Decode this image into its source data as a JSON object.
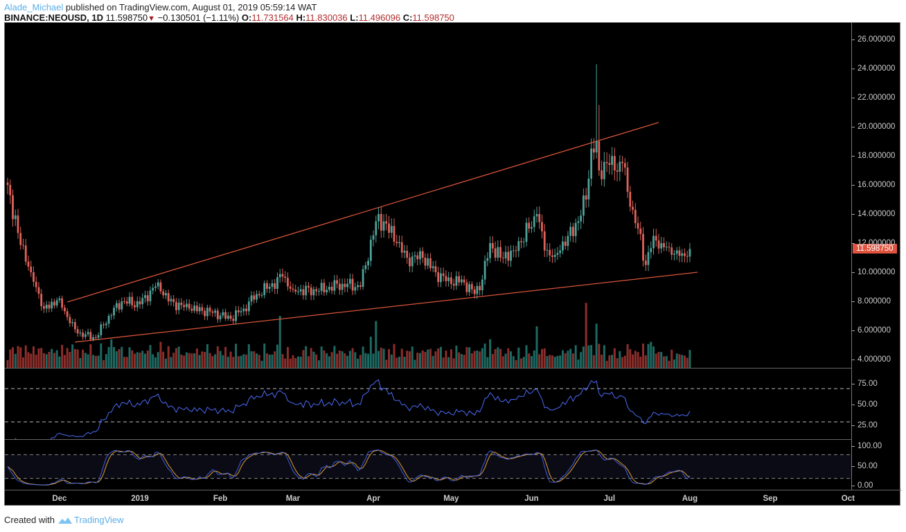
{
  "header": {
    "author": "Alade_Michael",
    "published_text": "published on TradingView.com, August 01, 2019 05:59:14 WAT",
    "symbol": "BINANCE:NEOUSD, 1D",
    "last": "11.598750",
    "change": "−0.130501 (−1.11%)",
    "o_label": "O:",
    "o": "11.731564",
    "h_label": "H:",
    "h": "11.830036",
    "l_label": "L:",
    "l": "11.496096",
    "c_label": "C:",
    "c": "11.598750",
    "direction_icon": "down-triangle"
  },
  "footer": {
    "created_with": "Created with",
    "brand": "TradingView",
    "logo_icon": "tradingview-cloud-logo"
  },
  "colors": {
    "up": "#4fa39a",
    "down": "#e0625a",
    "vol_up": "#1d6a62",
    "vol_down": "#8c2e2b",
    "trendline": "#d9553a",
    "rsi": "#4a6cf7",
    "stoch_k": "#3f5fe0",
    "stoch_d": "#e0a030",
    "price_tag": "#e0533f"
  },
  "chart_data": {
    "type": "candlestick",
    "interval": "1D",
    "price_axis": {
      "ticks": [
        "26.000000",
        "24.000000",
        "22.000000",
        "20.000000",
        "18.000000",
        "16.000000",
        "14.000000",
        "12.000000",
        "10.000000",
        "8.000000",
        "6.000000",
        "4.000000"
      ],
      "range": [
        3.5,
        27.1
      ]
    },
    "current_price_label": "11.598750",
    "time_axis": {
      "ticks": [
        [
          "Dec",
          "2018-12-01"
        ],
        [
          "2019",
          "2019-01-01"
        ],
        [
          "Feb",
          "2019-02-01"
        ],
        [
          "Mar",
          "2019-03-01"
        ],
        [
          "Apr",
          "2019-04-01"
        ],
        [
          "May",
          "2019-05-01"
        ],
        [
          "Jun",
          "2019-06-01"
        ],
        [
          "Jul",
          "2019-07-01"
        ],
        [
          "Aug",
          "2019-08-01"
        ],
        [
          "Sep",
          "2019-09-01"
        ],
        [
          "Oct",
          "2019-10-01"
        ]
      ],
      "start": "2018-11-11",
      "end": "2019-10-05"
    },
    "close_points": [
      [
        "2018-11-11",
        16.0
      ],
      [
        "2018-11-15",
        12.7
      ],
      [
        "2018-11-20",
        10.0
      ],
      [
        "2018-11-25",
        7.5
      ],
      [
        "2018-12-01",
        8.2
      ],
      [
        "2018-12-05",
        6.5
      ],
      [
        "2018-12-08",
        5.8
      ],
      [
        "2018-12-15",
        5.5
      ],
      [
        "2018-12-20",
        7.0
      ],
      [
        "2018-12-25",
        8.0
      ],
      [
        "2019-01-01",
        7.8
      ],
      [
        "2019-01-08",
        9.3
      ],
      [
        "2019-01-12",
        8.0
      ],
      [
        "2019-01-20",
        7.5
      ],
      [
        "2019-01-28",
        7.3
      ],
      [
        "2019-02-05",
        6.8
      ],
      [
        "2019-02-10",
        7.5
      ],
      [
        "2019-02-15",
        8.5
      ],
      [
        "2019-02-20",
        9.0
      ],
      [
        "2019-02-25",
        9.7
      ],
      [
        "2019-03-01",
        8.8
      ],
      [
        "2019-03-10",
        8.7
      ],
      [
        "2019-03-20",
        9.2
      ],
      [
        "2019-03-27",
        9.0
      ],
      [
        "2019-04-02",
        13.5
      ],
      [
        "2019-04-05",
        13.5
      ],
      [
        "2019-04-10",
        12.0
      ],
      [
        "2019-04-14",
        11.0
      ],
      [
        "2019-04-20",
        11.0
      ],
      [
        "2019-04-25",
        10.0
      ],
      [
        "2019-05-01",
        9.2
      ],
      [
        "2019-05-05",
        9.5
      ],
      [
        "2019-05-10",
        8.5
      ],
      [
        "2019-05-13",
        9.5
      ],
      [
        "2019-05-16",
        12.0
      ],
      [
        "2019-05-20",
        11.0
      ],
      [
        "2019-05-25",
        11.5
      ],
      [
        "2019-05-31",
        13.0
      ],
      [
        "2019-06-03",
        14.0
      ],
      [
        "2019-06-06",
        11.5
      ],
      [
        "2019-06-10",
        11.2
      ],
      [
        "2019-06-15",
        12.5
      ],
      [
        "2019-06-19",
        13.5
      ],
      [
        "2019-06-22",
        15.0
      ],
      [
        "2019-06-24",
        18.5
      ],
      [
        "2019-06-26",
        19.0
      ],
      [
        "2019-06-27",
        17.0
      ],
      [
        "2019-06-30",
        17.5
      ],
      [
        "2019-07-03",
        17.0
      ],
      [
        "2019-07-06",
        17.5
      ],
      [
        "2019-07-09",
        14.5
      ],
      [
        "2019-07-12",
        13.0
      ],
      [
        "2019-07-15",
        10.5
      ],
      [
        "2019-07-18",
        12.5
      ],
      [
        "2019-07-21",
        12.0
      ],
      [
        "2019-07-25",
        11.2
      ],
      [
        "2019-07-29",
        11.3
      ],
      [
        "2019-08-01",
        11.6
      ]
    ],
    "notable_highs": [
      [
        "2019-06-26",
        24.3
      ],
      [
        "2019-06-27",
        21.5
      ]
    ],
    "volume_peaks": [
      [
        "2018-12-06",
        0.45
      ],
      [
        "2018-12-21",
        0.55
      ],
      [
        "2019-01-09",
        0.5
      ],
      [
        "2019-02-24",
        1.0
      ],
      [
        "2019-03-31",
        0.6
      ],
      [
        "2019-04-02",
        0.9
      ],
      [
        "2019-05-16",
        0.55
      ],
      [
        "2019-06-03",
        0.8
      ],
      [
        "2019-06-22",
        1.25
      ],
      [
        "2019-06-26",
        0.85
      ],
      [
        "2019-07-17",
        0.5
      ]
    ],
    "trendlines": [
      {
        "from": [
          "2018-12-04",
          7.95
        ],
        "to": [
          "2019-07-20",
          20.3
        ]
      },
      {
        "from": [
          "2018-12-07",
          5.2
        ],
        "to": [
          "2019-08-04",
          10.0
        ]
      }
    ],
    "indicators": [
      {
        "type": "RSI",
        "ticks": [
          "75.00",
          "50.00",
          "25.00"
        ],
        "bands": [
          70,
          30
        ],
        "range": [
          6,
          93
        ]
      },
      {
        "type": "Stochastic",
        "ticks": [
          "100.00",
          "50.00",
          "0.00"
        ],
        "bands": [
          80,
          20
        ],
        "range": [
          -5,
          115
        ]
      }
    ]
  }
}
